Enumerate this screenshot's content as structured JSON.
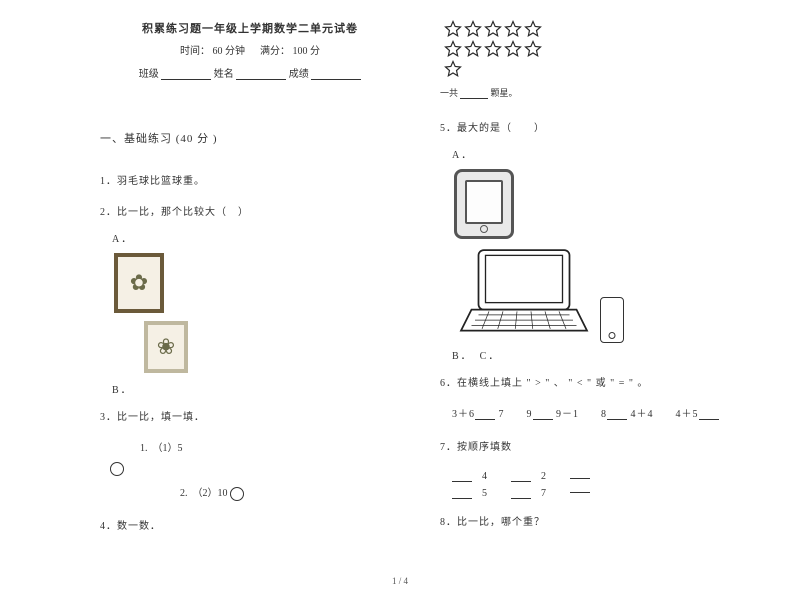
{
  "header": {
    "title": "积累练习题一年级上学期数学二单元试卷",
    "time_label": "时间：",
    "time_value": "60 分钟",
    "score_label": "满分：",
    "score_value": "100 分",
    "class_label": "班级",
    "name_label": "姓名",
    "grade_label": "成绩"
  },
  "section1": {
    "heading": "一、基础练习  (40 分 )",
    "q1": "1．羽毛球比篮球重。",
    "q2": "2．比一比，那个比较大（　）",
    "q2_optA": "A．",
    "q2_optB": "B．",
    "q3": "3．比一比，填一填．",
    "q3_sub1_label": "1.　（1）5",
    "q3_sub2_label": "2.　（2）10",
    "q4": "4．数一数．"
  },
  "right": {
    "stars_caption_pre": "一共",
    "stars_caption_post": "颗星。",
    "q5": "5．最大的是（　　）",
    "q5_optA": "A．",
    "q5_optBC": "B．　C．",
    "q6": "6．在横线上填上 \" > \" 、 \" < \" 或 \" = \" 。",
    "q6_items": [
      "3＋6",
      "7　　9",
      "9－1　　8",
      "4＋4　　4＋5"
    ],
    "q7": "7．按顺序填数",
    "q7_row1": [
      "4",
      "2"
    ],
    "q7_row2": [
      "5",
      "7"
    ],
    "q8": "8．比一比，哪个重？"
  },
  "page_num": "1 / 4",
  "style": {
    "star_stroke": "#2a2a2a",
    "star_fill": "#ffffff",
    "text_color": "#333333"
  }
}
